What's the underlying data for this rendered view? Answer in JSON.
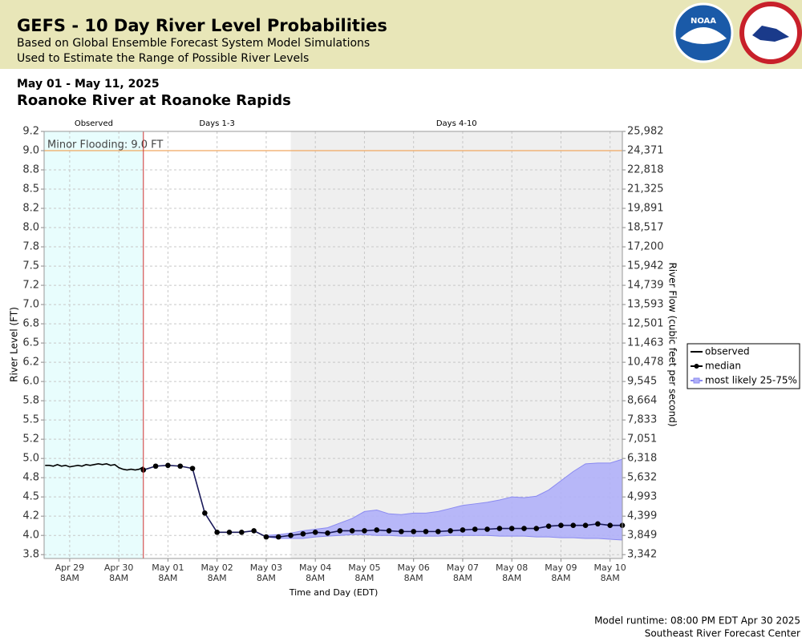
{
  "header": {
    "title": "GEFS - 10 Day River Level Probabilities",
    "lines": [
      "Based on Global Ensemble Forecast System Model Simulations",
      "Used to Estimate the Range of Possible River Levels"
    ],
    "logo_text": "NOAA"
  },
  "chart_data": {
    "type": "line",
    "subtitle": "May 01 - May 11, 2025",
    "title": "Roanoke River at Roanoke Rapids",
    "xlabel": "Time and Day (EDT)",
    "ylabel": "River Level (FT)",
    "y2label": "River Flow (cubic feet per second)",
    "xlim": [
      -4.5,
      278
    ],
    "ylim": [
      3.7,
      9.25
    ],
    "xticks": [
      {
        "value": 8,
        "label": "Apr 29"
      },
      {
        "value": 32,
        "label": "Apr 30"
      },
      {
        "value": 56,
        "label": "May 01"
      },
      {
        "value": 80,
        "label": "May 02"
      },
      {
        "value": 104,
        "label": "May 03"
      },
      {
        "value": 128,
        "label": "May 04"
      },
      {
        "value": 152,
        "label": "May 05"
      },
      {
        "value": 176,
        "label": "May 06"
      },
      {
        "value": 200,
        "label": "May 07"
      },
      {
        "value": 224,
        "label": "May 08"
      },
      {
        "value": 248,
        "label": "May 09"
      },
      {
        "value": 272,
        "label": "May 10"
      }
    ],
    "xtick_time": "8AM",
    "yticks": [
      {
        "value": 9.25,
        "label": "9.2"
      },
      {
        "value": 9.0,
        "label": "9.0"
      },
      {
        "value": 8.75,
        "label": "8.8"
      },
      {
        "value": 8.5,
        "label": "8.5"
      },
      {
        "value": 8.25,
        "label": "8.2"
      },
      {
        "value": 8.0,
        "label": "8.0"
      },
      {
        "value": 7.75,
        "label": "7.8"
      },
      {
        "value": 7.5,
        "label": "7.5"
      },
      {
        "value": 7.25,
        "label": "7.2"
      },
      {
        "value": 7.0,
        "label": "7.0"
      },
      {
        "value": 6.75,
        "label": "6.8"
      },
      {
        "value": 6.5,
        "label": "6.5"
      },
      {
        "value": 6.25,
        "label": "6.2"
      },
      {
        "value": 6.0,
        "label": "6.0"
      },
      {
        "value": 5.75,
        "label": "5.8"
      },
      {
        "value": 5.5,
        "label": "5.5"
      },
      {
        "value": 5.25,
        "label": "5.2"
      },
      {
        "value": 5.0,
        "label": "5.0"
      },
      {
        "value": 4.75,
        "label": "4.8"
      },
      {
        "value": 4.5,
        "label": "4.5"
      },
      {
        "value": 4.25,
        "label": "4.2"
      },
      {
        "value": 4.0,
        "label": "4.0"
      },
      {
        "value": 3.75,
        "label": "3.8"
      }
    ],
    "y2ticks": [
      {
        "value": 25982,
        "label": "25,982"
      },
      {
        "value": 24371,
        "label": "24,371"
      },
      {
        "value": 22818,
        "label": "22,818"
      },
      {
        "value": 21325,
        "label": "21,325"
      },
      {
        "value": 19891,
        "label": "19,891"
      },
      {
        "value": 18517,
        "label": "18,517"
      },
      {
        "value": 17200,
        "label": "17,200"
      },
      {
        "value": 15942,
        "label": "15,942"
      },
      {
        "value": 14739,
        "label": "14,739"
      },
      {
        "value": 13593,
        "label": "13,593"
      },
      {
        "value": 12501,
        "label": "12,501"
      },
      {
        "value": 11463,
        "label": "11,463"
      },
      {
        "value": 10478,
        "label": "10,478"
      },
      {
        "value": 9545,
        "label": "9,545"
      },
      {
        "value": 8664,
        "label": "8,664"
      },
      {
        "value": 7833,
        "label": "7,833"
      },
      {
        "value": 7051,
        "label": "7,051"
      },
      {
        "value": 6318,
        "label": "6,318"
      },
      {
        "value": 5632,
        "label": "5,632"
      },
      {
        "value": 4993,
        "label": "4,993"
      },
      {
        "value": 4399,
        "label": "4,399"
      },
      {
        "value": 3849,
        "label": "3,849"
      },
      {
        "value": 3342,
        "label": "3,342"
      }
    ],
    "grid": true,
    "periods": [
      {
        "label": "Observed",
        "start": -4.5,
        "end": 44,
        "color": "#e8fdfd"
      },
      {
        "label": "Days 1-3",
        "start": 44,
        "end": 116,
        "color": "#ffffff"
      },
      {
        "label": "Days 4-10",
        "start": 116,
        "end": 278,
        "color": "#efefef"
      }
    ],
    "now": 44,
    "flood": {
      "value": 9.0,
      "label": "Minor Flooding: 9.0 FT",
      "color": "#f0a860"
    },
    "series": [
      {
        "name": "observed",
        "color": "#000000",
        "kind": "line",
        "x": [
          -4,
          -2,
          0,
          2,
          4,
          6,
          8,
          10,
          12,
          14,
          16,
          18,
          20,
          22,
          24,
          26,
          28,
          30,
          32,
          34,
          36,
          38,
          40,
          42,
          44
        ],
        "values": [
          4.91,
          4.91,
          4.9,
          4.92,
          4.9,
          4.91,
          4.89,
          4.9,
          4.91,
          4.9,
          4.92,
          4.91,
          4.92,
          4.93,
          4.92,
          4.93,
          4.91,
          4.92,
          4.88,
          4.86,
          4.85,
          4.86,
          4.85,
          4.86,
          4.89
        ]
      },
      {
        "name": "median",
        "color": "#000000",
        "kind": "markers",
        "x": [
          44,
          50,
          56,
          62,
          68,
          74,
          80,
          86,
          92,
          98,
          104,
          110,
          116,
          122,
          128,
          134,
          140,
          146,
          152,
          158,
          164,
          170,
          176,
          182,
          188,
          194,
          200,
          206,
          212,
          218,
          224,
          230,
          236,
          242,
          248,
          254,
          260,
          266,
          272,
          278
        ],
        "values": [
          4.85,
          4.9,
          4.91,
          4.9,
          4.87,
          4.29,
          4.04,
          4.04,
          4.04,
          4.06,
          3.98,
          3.98,
          4.0,
          4.02,
          4.04,
          4.03,
          4.06,
          4.06,
          4.06,
          4.07,
          4.06,
          4.05,
          4.05,
          4.05,
          4.05,
          4.06,
          4.07,
          4.08,
          4.08,
          4.09,
          4.09,
          4.09,
          4.09,
          4.12,
          4.13,
          4.13,
          4.13,
          4.15,
          4.13,
          4.13
        ]
      },
      {
        "name": "most likely 25-75%",
        "color": "#b0b0f8",
        "kind": "band",
        "x": [
          104,
          110,
          116,
          122,
          128,
          134,
          140,
          146,
          152,
          158,
          164,
          170,
          176,
          182,
          188,
          194,
          200,
          206,
          212,
          218,
          224,
          230,
          236,
          242,
          248,
          254,
          260,
          266,
          272,
          278
        ],
        "upper": [
          4.0,
          4.01,
          4.03,
          4.06,
          4.08,
          4.1,
          4.16,
          4.22,
          4.31,
          4.33,
          4.28,
          4.27,
          4.29,
          4.29,
          4.31,
          4.35,
          4.39,
          4.41,
          4.43,
          4.46,
          4.5,
          4.49,
          4.51,
          4.59,
          4.71,
          4.83,
          4.93,
          4.94,
          4.94,
          4.99
        ],
        "lower": [
          3.98,
          3.96,
          3.96,
          3.96,
          3.98,
          3.99,
          4.0,
          4.01,
          4.01,
          4.0,
          4.0,
          3.99,
          3.99,
          3.99,
          3.99,
          4.0,
          4.0,
          4.0,
          4.0,
          3.99,
          3.99,
          3.99,
          3.98,
          3.98,
          3.97,
          3.97,
          3.96,
          3.96,
          3.95,
          3.94
        ]
      }
    ]
  },
  "footer": [
    "Model runtime: 08:00 PM EDT Apr 30 2025",
    "Southeast River Forecast Center"
  ]
}
